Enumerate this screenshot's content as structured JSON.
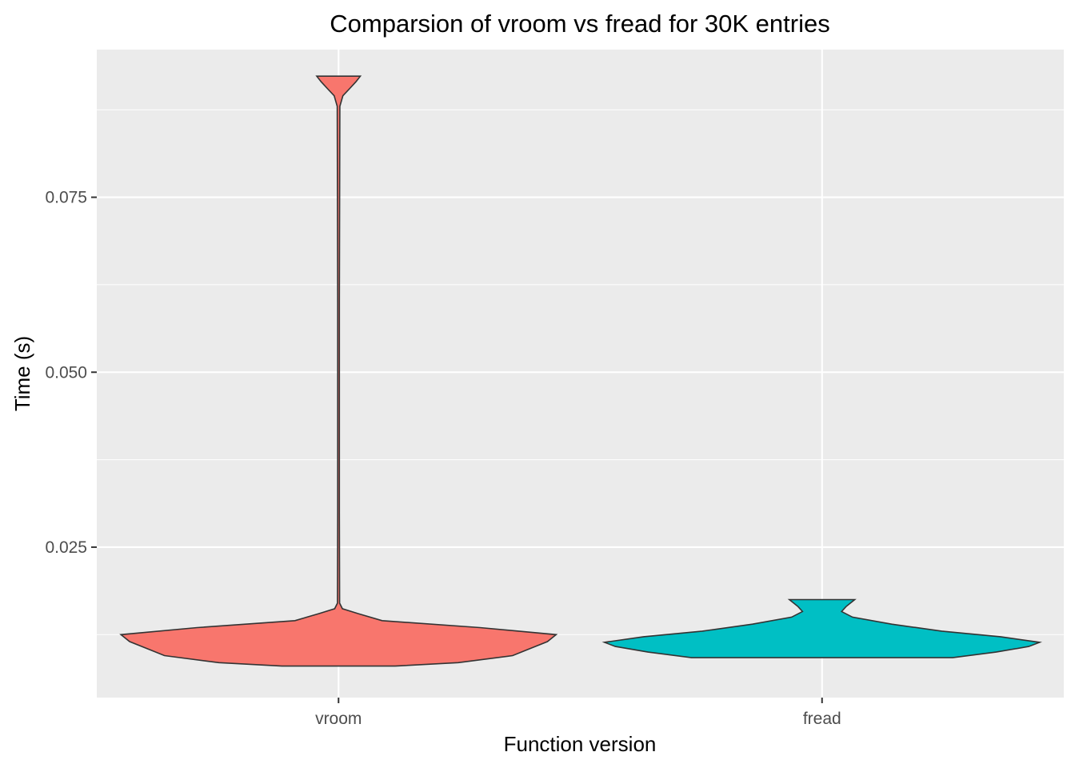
{
  "chart_data": {
    "type": "violin",
    "title": "Comparsion of vroom vs fread for 30K entries",
    "xlabel": "Function version",
    "ylabel": "Time (s)",
    "categories": [
      "vroom",
      "fread"
    ],
    "y_ticks": [
      {
        "value": 0.025,
        "label": "0.025"
      },
      {
        "value": 0.05,
        "label": "0.050"
      },
      {
        "value": 0.075,
        "label": "0.075"
      }
    ],
    "y_minor": [
      0.0125,
      0.0375,
      0.0625,
      0.0875
    ],
    "ylim": [
      0.0035,
      0.0961
    ],
    "grid": true,
    "legend": "none",
    "series": [
      {
        "category": "vroom",
        "color": "#F8766D",
        "min": 0.008,
        "max": 0.0923,
        "profile": [
          [
            0.008,
            0.26
          ],
          [
            0.0085,
            0.55
          ],
          [
            0.0095,
            0.8
          ],
          [
            0.0105,
            0.88
          ],
          [
            0.0115,
            0.96
          ],
          [
            0.0125,
            1.0
          ],
          [
            0.0135,
            0.65
          ],
          [
            0.0145,
            0.2
          ],
          [
            0.0155,
            0.09
          ],
          [
            0.0162,
            0.018
          ],
          [
            0.017,
            0.005
          ],
          [
            0.03,
            0.004
          ],
          [
            0.06,
            0.004
          ],
          [
            0.088,
            0.006
          ],
          [
            0.0895,
            0.02
          ],
          [
            0.0905,
            0.05
          ],
          [
            0.0915,
            0.08
          ],
          [
            0.0923,
            0.1
          ]
        ]
      },
      {
        "category": "fread",
        "color": "#00BFC4",
        "min": 0.0092,
        "max": 0.0175,
        "profile": [
          [
            0.0092,
            0.6
          ],
          [
            0.01,
            0.8
          ],
          [
            0.0108,
            0.95
          ],
          [
            0.0114,
            1.0
          ],
          [
            0.0122,
            0.82
          ],
          [
            0.013,
            0.55
          ],
          [
            0.014,
            0.32
          ],
          [
            0.015,
            0.14
          ],
          [
            0.0158,
            0.09
          ],
          [
            0.0165,
            0.11
          ],
          [
            0.0175,
            0.15
          ]
        ]
      }
    ]
  }
}
